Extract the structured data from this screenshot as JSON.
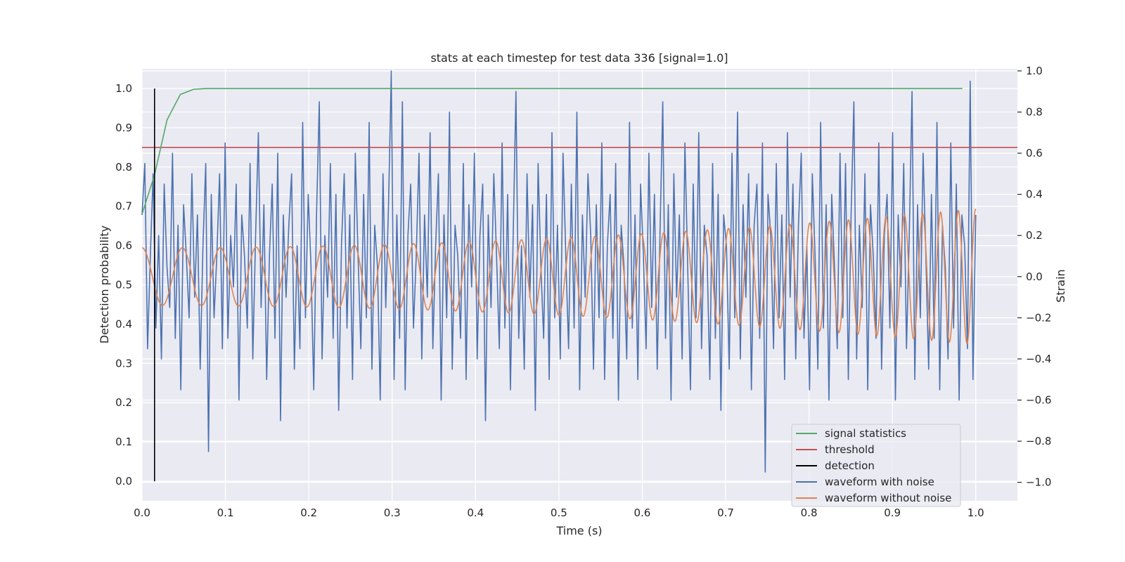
{
  "chart_data": {
    "type": "line",
    "title": "stats at each timestep for test data 336 [signal=1.0]",
    "xlabel": "Time (s)",
    "ylabel_left": "Detection probability",
    "ylabel_right": "Strain",
    "xlim": [
      0.0,
      1.05
    ],
    "ylim_left": [
      -0.05,
      1.05
    ],
    "ylim_right": [
      -1.09,
      1.01
    ],
    "xticks": [
      "0.0",
      "0.1",
      "0.2",
      "0.3",
      "0.4",
      "0.5",
      "0.6",
      "0.7",
      "0.8",
      "0.9",
      "1.0"
    ],
    "yticks_left": [
      "0.0",
      "0.1",
      "0.2",
      "0.3",
      "0.4",
      "0.5",
      "0.6",
      "0.7",
      "0.8",
      "0.9",
      "1.0"
    ],
    "yticks_right": [
      "−1.0",
      "−0.8",
      "−0.6",
      "−0.4",
      "−0.2",
      "0.0",
      "0.2",
      "0.4",
      "0.6",
      "0.8",
      "1.0"
    ],
    "grid": true,
    "legend_position": "lower-right",
    "series": [
      {
        "name": "signal statistics",
        "axis": "left",
        "color": "#55a868",
        "x": [
          0.0,
          0.015,
          0.03,
          0.046,
          0.062,
          0.078,
          0.093,
          0.2,
          0.5,
          0.984
        ],
        "y": [
          0.68,
          0.78,
          0.92,
          0.985,
          0.998,
          1.0,
          1.0,
          1.0,
          1.0,
          1.0
        ]
      },
      {
        "name": "threshold",
        "axis": "left",
        "color": "#c44e52",
        "x": [
          0.0,
          1.05
        ],
        "y": [
          0.85,
          0.85
        ]
      },
      {
        "name": "detection",
        "axis": "left",
        "color": "#000000",
        "x": [
          0.015,
          0.015
        ],
        "y": [
          0.0,
          1.0
        ]
      },
      {
        "name": "waveform with noise",
        "axis": "right",
        "color": "#4c72b0",
        "x_range": [
          0.0,
          1.0
        ],
        "y": [
          0.3,
          0.55,
          -0.35,
          0.1,
          0.5,
          -0.25,
          0.2,
          -0.4,
          0.45,
          0.05,
          -0.15,
          0.6,
          -0.3,
          0.25,
          -0.55,
          0.35,
          0.1,
          -0.2,
          0.5,
          -0.1,
          0.3,
          -0.45,
          0.15,
          0.55,
          -0.85,
          0.4,
          -0.2,
          0.1,
          0.5,
          -0.35,
          0.65,
          -0.3,
          0.2,
          -0.05,
          0.45,
          -0.6,
          0.3,
          0.1,
          -0.25,
          0.55,
          -0.4,
          0.2,
          0.7,
          -0.15,
          0.35,
          -0.5,
          0.1,
          0.45,
          -0.3,
          0.6,
          -0.7,
          0.3,
          -0.1,
          0.25,
          0.5,
          -0.45,
          0.15,
          -0.35,
          0.75,
          -0.2,
          0.4,
          0.05,
          -0.55,
          0.3,
          0.85,
          -0.4,
          0.2,
          -0.1,
          0.55,
          -0.3,
          0.4,
          -0.65,
          0.15,
          0.5,
          -0.25,
          0.3,
          -0.5,
          0.6,
          0.1,
          -0.35,
          0.4,
          -0.2,
          0.75,
          -0.45,
          0.25,
          0.05,
          -0.6,
          0.5,
          -0.15,
          0.35,
          1.0,
          -0.5,
          0.3,
          -0.3,
          0.85,
          -0.55,
          0.2,
          0.45,
          -0.25,
          0.1,
          0.6,
          -0.4,
          0.3,
          -0.1,
          0.7,
          -0.35,
          0.15,
          0.5,
          -0.6,
          0.3,
          -0.2,
          0.8,
          -0.45,
          0.25,
          0.1,
          -0.3,
          0.55,
          -0.5,
          0.35,
          -0.05,
          0.6,
          -0.4,
          0.2,
          0.45,
          -0.7,
          0.3,
          -0.15,
          0.5,
          0.1,
          -0.35,
          0.65,
          -0.25,
          0.4,
          -0.55,
          0.2,
          0.9,
          -0.3,
          0.15,
          -0.45,
          0.5,
          -0.1,
          0.35,
          -0.65,
          0.55,
          0.05,
          -0.3,
          0.4,
          -0.5,
          0.7,
          -0.2,
          0.25,
          -0.4,
          0.6,
          0.1,
          -0.35,
          0.45,
          -0.25,
          0.8,
          -0.55,
          0.3,
          -0.1,
          0.5,
          0.2,
          -0.45,
          0.35,
          -0.2,
          0.65,
          -0.5,
          0.15,
          0.4,
          -0.3,
          0.55,
          -0.6,
          0.25,
          0.05,
          -0.4,
          0.75,
          -0.25,
          0.3,
          -0.5,
          0.45,
          0.1,
          -0.35,
          0.6,
          -0.15,
          0.4,
          -0.45,
          0.2,
          0.85,
          -0.3,
          0.35,
          -0.6,
          0.5,
          -0.1,
          0.3,
          -0.4,
          0.65,
          0.05,
          -0.55,
          0.45,
          -0.2,
          0.7,
          -0.35,
          0.25,
          0.1,
          -0.5,
          0.55,
          -0.3,
          0.4,
          -0.65,
          0.3,
          0.15,
          -0.45,
          0.6,
          -0.2,
          0.8,
          -0.4,
          0.35,
          -0.1,
          0.5,
          -0.55,
          0.25,
          0.45,
          -0.3,
          0.65,
          -0.95,
          0.4,
          0.2,
          -0.35,
          0.55,
          -0.2,
          0.3,
          -0.5,
          0.7,
          -0.1,
          0.45,
          -0.4,
          0.25,
          0.6,
          -0.3,
          0.15,
          -0.55,
          0.5,
          0.1,
          -0.45,
          0.75,
          -0.25,
          0.35,
          -0.6,
          0.4,
          0.05,
          -0.35,
          0.6,
          -0.2,
          0.55,
          -0.5,
          0.3,
          0.85,
          -0.4,
          0.25,
          -0.15,
          0.5,
          -0.55,
          0.35,
          0.1,
          -0.3,
          0.65,
          -0.45,
          0.2,
          0.4,
          -0.25,
          0.7,
          -0.6,
          0.3,
          -0.05,
          0.55,
          -0.35,
          0.2,
          0.9,
          -0.5,
          0.35,
          -0.2,
          0.6,
          0.1,
          -0.45,
          0.4,
          -0.3,
          0.75,
          -0.55,
          0.25,
          0.05,
          -0.4,
          0.65,
          -0.25,
          0.45,
          -0.6,
          0.3,
          0.15,
          -0.35,
          0.95,
          -0.5,
          0.3
        ]
      },
      {
        "name": "waveform without noise",
        "axis": "right",
        "color": "#dd8452",
        "x_range": [
          0.0,
          1.0
        ],
        "freq_start_hz": 20,
        "freq_end_hz": 48,
        "amp_start": 0.14,
        "amp_end": 0.33
      }
    ]
  }
}
